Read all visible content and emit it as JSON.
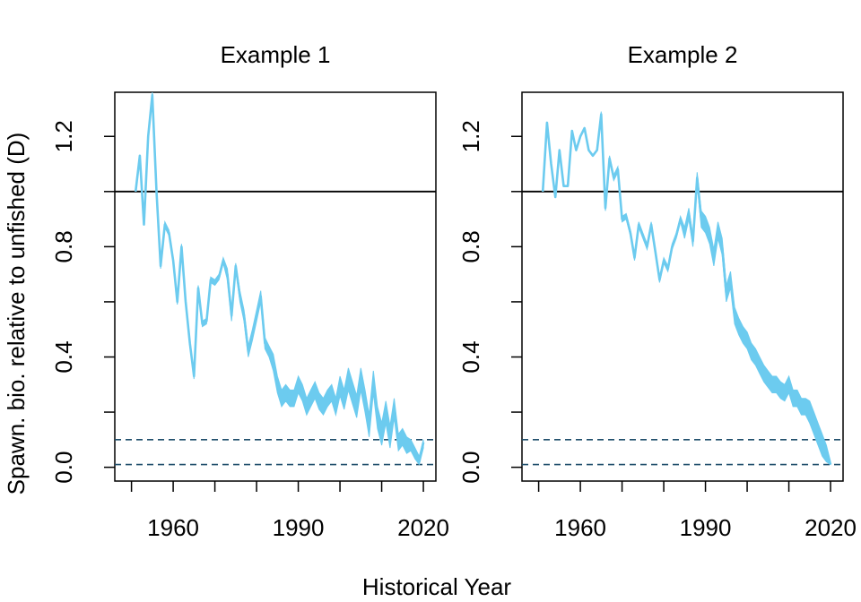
{
  "figure": {
    "ylabel": "Spawn. bio. relative to unfished (D)",
    "xlabel": "Historical Year"
  },
  "colors": {
    "series": "#6ccbef",
    "reference_line": "#000000",
    "threshold_lines": "#1f4e6b",
    "axis": "#000000"
  },
  "chart_data": [
    {
      "type": "line",
      "title": "Example 1",
      "xlabel": "",
      "ylabel": "",
      "xlim": [
        1946,
        2023
      ],
      "ylim": [
        -0.05,
        1.36
      ],
      "x_ticks": [
        1950,
        1960,
        1970,
        1980,
        1990,
        2000,
        2010,
        2020
      ],
      "x_tick_labels": [
        "1960",
        "1990",
        "2020"
      ],
      "y_ticks": [
        0.0,
        0.2,
        0.4,
        0.6,
        0.8,
        1.0,
        1.2
      ],
      "y_tick_labels": [
        "0.0",
        "0.4",
        "0.8",
        "1.2"
      ],
      "grid": false,
      "reference_lines": [
        {
          "y": 1.0,
          "style": "solid"
        },
        {
          "y": 0.1,
          "style": "dashed"
        },
        {
          "y": 0.01,
          "style": "dashed"
        }
      ],
      "x": [
        1951,
        1952,
        1953,
        1954,
        1955,
        1956,
        1957,
        1958,
        1959,
        1960,
        1961,
        1962,
        1963,
        1964,
        1965,
        1966,
        1967,
        1968,
        1969,
        1970,
        1971,
        1972,
        1973,
        1974,
        1975,
        1976,
        1977,
        1978,
        1979,
        1980,
        1981,
        1982,
        1983,
        1984,
        1985,
        1986,
        1987,
        1988,
        1989,
        1990,
        1991,
        1992,
        1993,
        1994,
        1995,
        1996,
        1997,
        1998,
        1999,
        2000,
        2001,
        2002,
        2003,
        2004,
        2005,
        2006,
        2007,
        2008,
        2009,
        2010,
        2011,
        2012,
        2013,
        2014,
        2015,
        2016,
        2017,
        2018,
        2019,
        2020
      ],
      "series": [
        {
          "values": [
            1.0,
            1.13,
            0.88,
            1.2,
            1.35,
            1.0,
            0.73,
            0.88,
            0.85,
            0.75,
            0.6,
            0.8,
            0.6,
            0.45,
            0.33,
            0.65,
            0.52,
            0.53,
            0.68,
            0.67,
            0.69,
            0.75,
            0.7,
            0.55,
            0.73,
            0.62,
            0.55,
            0.42,
            0.48,
            0.55,
            0.62,
            0.45,
            0.42,
            0.38,
            0.3,
            0.25,
            0.27,
            0.25,
            0.25,
            0.3,
            0.27,
            0.22,
            0.25,
            0.28,
            0.24,
            0.22,
            0.25,
            0.27,
            0.22,
            0.3,
            0.25,
            0.32,
            0.27,
            0.22,
            0.32,
            0.24,
            0.15,
            0.31,
            0.18,
            0.12,
            0.2,
            0.11,
            0.22,
            0.09,
            0.11,
            0.08,
            0.08,
            0.05,
            0.02,
            0.09
          ],
          "upper": [
            1.0,
            1.13,
            0.88,
            1.2,
            1.36,
            1.0,
            0.74,
            0.89,
            0.86,
            0.76,
            0.61,
            0.81,
            0.61,
            0.46,
            0.34,
            0.66,
            0.53,
            0.54,
            0.69,
            0.68,
            0.7,
            0.76,
            0.72,
            0.57,
            0.74,
            0.64,
            0.57,
            0.44,
            0.5,
            0.57,
            0.64,
            0.47,
            0.44,
            0.41,
            0.33,
            0.28,
            0.3,
            0.28,
            0.28,
            0.33,
            0.3,
            0.25,
            0.28,
            0.31,
            0.27,
            0.25,
            0.28,
            0.3,
            0.25,
            0.33,
            0.28,
            0.36,
            0.31,
            0.26,
            0.36,
            0.28,
            0.19,
            0.35,
            0.22,
            0.16,
            0.24,
            0.15,
            0.25,
            0.12,
            0.14,
            0.11,
            0.1,
            0.07,
            0.04,
            0.1
          ],
          "lower": [
            1.0,
            1.13,
            0.88,
            1.2,
            1.34,
            1.0,
            0.72,
            0.87,
            0.84,
            0.74,
            0.59,
            0.79,
            0.59,
            0.44,
            0.32,
            0.64,
            0.51,
            0.52,
            0.67,
            0.66,
            0.68,
            0.74,
            0.68,
            0.53,
            0.72,
            0.6,
            0.53,
            0.4,
            0.46,
            0.53,
            0.6,
            0.43,
            0.4,
            0.35,
            0.27,
            0.22,
            0.24,
            0.22,
            0.22,
            0.27,
            0.24,
            0.19,
            0.22,
            0.25,
            0.21,
            0.19,
            0.22,
            0.24,
            0.19,
            0.26,
            0.21,
            0.28,
            0.23,
            0.18,
            0.28,
            0.2,
            0.11,
            0.27,
            0.14,
            0.08,
            0.16,
            0.07,
            0.18,
            0.06,
            0.08,
            0.05,
            0.06,
            0.03,
            0.01,
            0.07
          ]
        }
      ]
    },
    {
      "type": "line",
      "title": "Example 2",
      "xlabel": "",
      "ylabel": "",
      "xlim": [
        1946,
        2023
      ],
      "ylim": [
        -0.05,
        1.36
      ],
      "x_ticks": [
        1950,
        1960,
        1970,
        1980,
        1990,
        2000,
        2010,
        2020
      ],
      "x_tick_labels": [
        "1960",
        "1990",
        "2020"
      ],
      "y_ticks": [
        0.0,
        0.2,
        0.4,
        0.6,
        0.8,
        1.0,
        1.2
      ],
      "y_tick_labels": [
        "0.0",
        "0.4",
        "0.8",
        "1.2"
      ],
      "grid": false,
      "reference_lines": [
        {
          "y": 1.0,
          "style": "solid"
        },
        {
          "y": 0.1,
          "style": "dashed"
        },
        {
          "y": 0.01,
          "style": "dashed"
        }
      ],
      "x": [
        1951,
        1952,
        1953,
        1954,
        1955,
        1956,
        1957,
        1958,
        1959,
        1960,
        1961,
        1962,
        1963,
        1964,
        1965,
        1966,
        1967,
        1968,
        1969,
        1970,
        1971,
        1972,
        1973,
        1974,
        1975,
        1976,
        1977,
        1978,
        1979,
        1980,
        1981,
        1982,
        1983,
        1984,
        1985,
        1986,
        1987,
        1988,
        1989,
        1990,
        1991,
        1992,
        1993,
        1994,
        1995,
        1996,
        1997,
        1998,
        1999,
        2000,
        2001,
        2002,
        2003,
        2004,
        2005,
        2006,
        2007,
        2008,
        2009,
        2010,
        2011,
        2012,
        2013,
        2014,
        2015,
        2016,
        2017,
        2018,
        2019,
        2020
      ],
      "series": [
        {
          "values": [
            1.0,
            1.25,
            1.1,
            0.98,
            1.15,
            1.02,
            1.02,
            1.22,
            1.15,
            1.2,
            1.23,
            1.15,
            1.13,
            1.15,
            1.28,
            0.94,
            1.12,
            1.05,
            1.08,
            0.9,
            0.91,
            0.85,
            0.76,
            0.88,
            0.84,
            0.8,
            0.88,
            0.78,
            0.68,
            0.75,
            0.72,
            0.8,
            0.84,
            0.9,
            0.85,
            0.92,
            0.82,
            1.05,
            0.9,
            0.88,
            0.84,
            0.76,
            0.86,
            0.8,
            0.63,
            0.68,
            0.55,
            0.51,
            0.48,
            0.46,
            0.42,
            0.4,
            0.37,
            0.34,
            0.32,
            0.3,
            0.3,
            0.28,
            0.27,
            0.3,
            0.25,
            0.25,
            0.22,
            0.22,
            0.2,
            0.16,
            0.12,
            0.08,
            0.05,
            0.01
          ],
          "upper": [
            1.0,
            1.25,
            1.1,
            0.98,
            1.15,
            1.02,
            1.02,
            1.22,
            1.15,
            1.2,
            1.23,
            1.15,
            1.13,
            1.15,
            1.29,
            0.95,
            1.13,
            1.06,
            1.09,
            0.91,
            0.92,
            0.86,
            0.77,
            0.89,
            0.85,
            0.81,
            0.89,
            0.79,
            0.69,
            0.76,
            0.73,
            0.81,
            0.85,
            0.91,
            0.87,
            0.94,
            0.84,
            1.07,
            0.93,
            0.91,
            0.87,
            0.79,
            0.89,
            0.83,
            0.66,
            0.71,
            0.58,
            0.54,
            0.51,
            0.49,
            0.45,
            0.43,
            0.4,
            0.37,
            0.35,
            0.33,
            0.33,
            0.31,
            0.3,
            0.33,
            0.28,
            0.28,
            0.25,
            0.25,
            0.24,
            0.2,
            0.16,
            0.12,
            0.08,
            0.02
          ],
          "lower": [
            1.0,
            1.25,
            1.1,
            0.98,
            1.15,
            1.02,
            1.02,
            1.22,
            1.15,
            1.2,
            1.23,
            1.15,
            1.13,
            1.15,
            1.27,
            0.93,
            1.11,
            1.04,
            1.07,
            0.89,
            0.9,
            0.84,
            0.75,
            0.87,
            0.83,
            0.79,
            0.87,
            0.77,
            0.67,
            0.74,
            0.71,
            0.79,
            0.83,
            0.89,
            0.83,
            0.9,
            0.8,
            1.03,
            0.87,
            0.85,
            0.81,
            0.73,
            0.83,
            0.77,
            0.6,
            0.65,
            0.52,
            0.48,
            0.45,
            0.43,
            0.39,
            0.37,
            0.34,
            0.31,
            0.29,
            0.27,
            0.27,
            0.25,
            0.24,
            0.27,
            0.22,
            0.22,
            0.19,
            0.19,
            0.16,
            0.12,
            0.08,
            0.04,
            0.02,
            0.01
          ]
        }
      ]
    }
  ]
}
